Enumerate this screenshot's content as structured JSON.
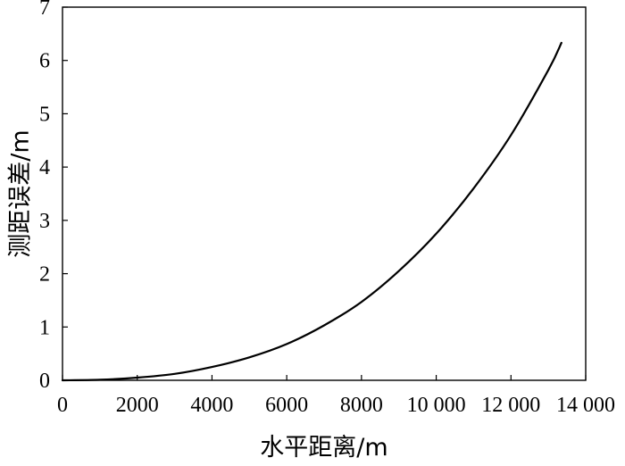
{
  "chart_data": {
    "type": "line",
    "title": "",
    "xlabel": "水平距离/m",
    "ylabel": "测距误差/m",
    "xlim": [
      0,
      14000
    ],
    "ylim": [
      0,
      7
    ],
    "xticks": [
      0,
      2000,
      4000,
      6000,
      8000,
      10000,
      12000,
      14000
    ],
    "xtick_labels": [
      "0",
      "2000",
      "4000",
      "6000",
      "8000",
      "10 000",
      "12 000",
      "14 000"
    ],
    "yticks": [
      0,
      1,
      2,
      3,
      4,
      5,
      6,
      7
    ],
    "ytick_labels": [
      "0",
      "1",
      "2",
      "3",
      "4",
      "5",
      "6",
      "7"
    ],
    "grid": false,
    "legend": "none",
    "line_color": "#000000",
    "series": [
      {
        "x": [
          0,
          1000,
          2000,
          3000,
          4000,
          5000,
          6000,
          7000,
          8000,
          9000,
          10000,
          11000,
          12000,
          13000,
          13350
        ],
        "y": [
          0,
          0.01,
          0.05,
          0.12,
          0.25,
          0.43,
          0.68,
          1.03,
          1.47,
          2.05,
          2.75,
          3.6,
          4.6,
          5.82,
          6.33
        ]
      }
    ]
  }
}
